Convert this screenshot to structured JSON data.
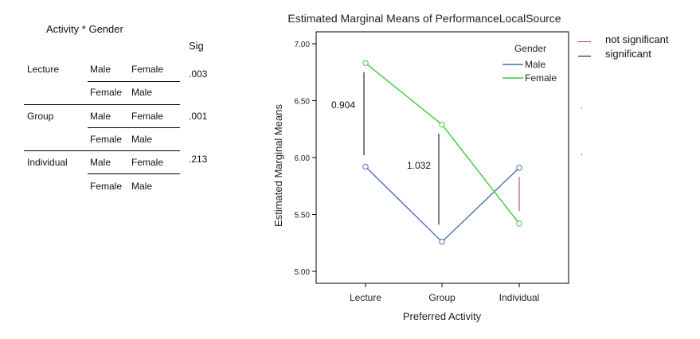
{
  "table": {
    "title": "Activity * Gender",
    "sig_header": "Sig",
    "groups": [
      {
        "activity": "Lecture",
        "row1": [
          "Male",
          "Female"
        ],
        "row2": [
          "Female",
          "Male"
        ],
        "sig": ".003"
      },
      {
        "activity": "Group",
        "row1": [
          "Male",
          "Female"
        ],
        "row2": [
          "Female",
          "Male"
        ],
        "sig": ".001"
      },
      {
        "activity": "Individual",
        "row1": [
          "Male",
          "Female"
        ],
        "row2": [
          "Female",
          "Male"
        ],
        "sig": ".213"
      }
    ]
  },
  "chart_data": {
    "type": "line",
    "title": "Estimated Marginal Means of PerformanceLocalSource",
    "xlabel": "Preferred Activity",
    "ylabel": "Estimated Marginal Means",
    "categories": [
      "Lecture",
      "Group",
      "Individual"
    ],
    "ylim": [
      5.0,
      7.0
    ],
    "yticks": [
      "5.00",
      "5.50",
      "6.00",
      "6.50",
      "7.00"
    ],
    "legend_title": "Gender",
    "series": [
      {
        "name": "Male",
        "color": "#4a6eb5",
        "values": [
          5.92,
          5.26,
          5.91
        ]
      },
      {
        "name": "Female",
        "color": "#3ec93e",
        "values": [
          6.83,
          6.29,
          5.42
        ]
      }
    ],
    "annotations": [
      {
        "label": "0.904",
        "category": "Lecture",
        "y_from": 6.02,
        "y_to": 6.75,
        "color": "#000000"
      },
      {
        "label": "1.032",
        "category": "Group",
        "y_from": 5.41,
        "y_to": 6.21,
        "color": "#000000"
      },
      {
        "label": "",
        "category": "Individual",
        "y_from": 5.53,
        "y_to": 5.83,
        "color": "#c0304a"
      }
    ],
    "grid": false
  },
  "key": {
    "items": [
      {
        "label": "not significant",
        "color": "#c0304a"
      },
      {
        "label": "significant",
        "color": "#000000"
      }
    ]
  }
}
